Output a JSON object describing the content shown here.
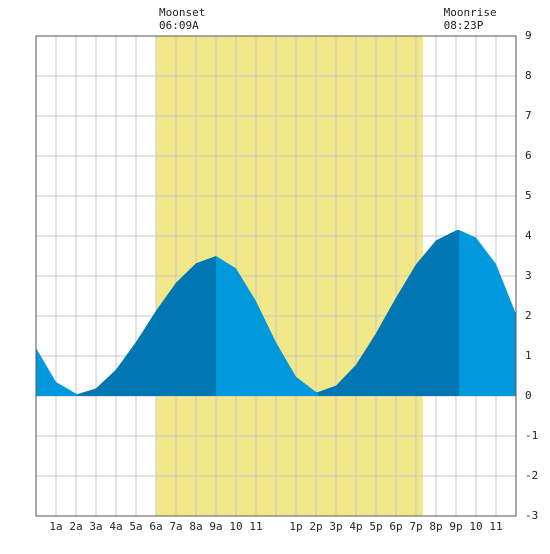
{
  "chart_data": {
    "type": "area",
    "events": [
      {
        "name": "Moonset",
        "time": "06:09A",
        "x": 6.15
      },
      {
        "name": "Moonrise",
        "time": "08:23P",
        "x": 20.38
      }
    ],
    "daylight": [
      6.0,
      19.35
    ],
    "daylight_color": "#f2e88a",
    "x": [
      0,
      1,
      2,
      2.1,
      3,
      4,
      5,
      6,
      7,
      8,
      9,
      10,
      11,
      12,
      13,
      14,
      14.1,
      15,
      16,
      17,
      18,
      19,
      20,
      21,
      21.15,
      22,
      23,
      24
    ],
    "values": [
      1.2,
      0.35,
      0.06,
      0.05,
      0.19,
      0.66,
      1.35,
      2.13,
      2.83,
      3.32,
      3.5,
      3.19,
      2.37,
      1.34,
      0.48,
      0.1,
      0.1,
      0.26,
      0.78,
      1.57,
      2.46,
      3.29,
      3.89,
      4.14,
      4.15,
      3.96,
      3.3,
      2.05
    ],
    "rising_color": "#0077b3",
    "falling_color": "#0099dd",
    "xlim": [
      0,
      24
    ],
    "ylim": [
      -3,
      9
    ],
    "xticks": [
      {
        "value": 1,
        "label": "1a"
      },
      {
        "value": 2,
        "label": "2a"
      },
      {
        "value": 3,
        "label": "3a"
      },
      {
        "value": 4,
        "label": "4a"
      },
      {
        "value": 5,
        "label": "5a"
      },
      {
        "value": 6,
        "label": "6a"
      },
      {
        "value": 7,
        "label": "7a"
      },
      {
        "value": 8,
        "label": "8a"
      },
      {
        "value": 9,
        "label": "9a"
      },
      10,
      11,
      {
        "value": 12,
        "label": null
      },
      {
        "value": 13,
        "label": "1p"
      },
      {
        "value": 14,
        "label": "2p"
      },
      {
        "value": 15,
        "label": "3p"
      },
      {
        "value": 16,
        "label": "4p"
      },
      {
        "value": 17,
        "label": "5p"
      },
      {
        "value": 18,
        "label": "6p"
      },
      {
        "value": 19,
        "label": "7p"
      },
      {
        "value": 20,
        "label": "8p"
      },
      {
        "value": 21,
        "label": "9p"
      },
      {
        "value": 22,
        "label": "10"
      },
      {
        "value": 23,
        "label": "11"
      }
    ],
    "yticks": [
      -3,
      -2,
      -1,
      0,
      1,
      2,
      3,
      4,
      5,
      6,
      7,
      8,
      9
    ],
    "grid": true
  }
}
